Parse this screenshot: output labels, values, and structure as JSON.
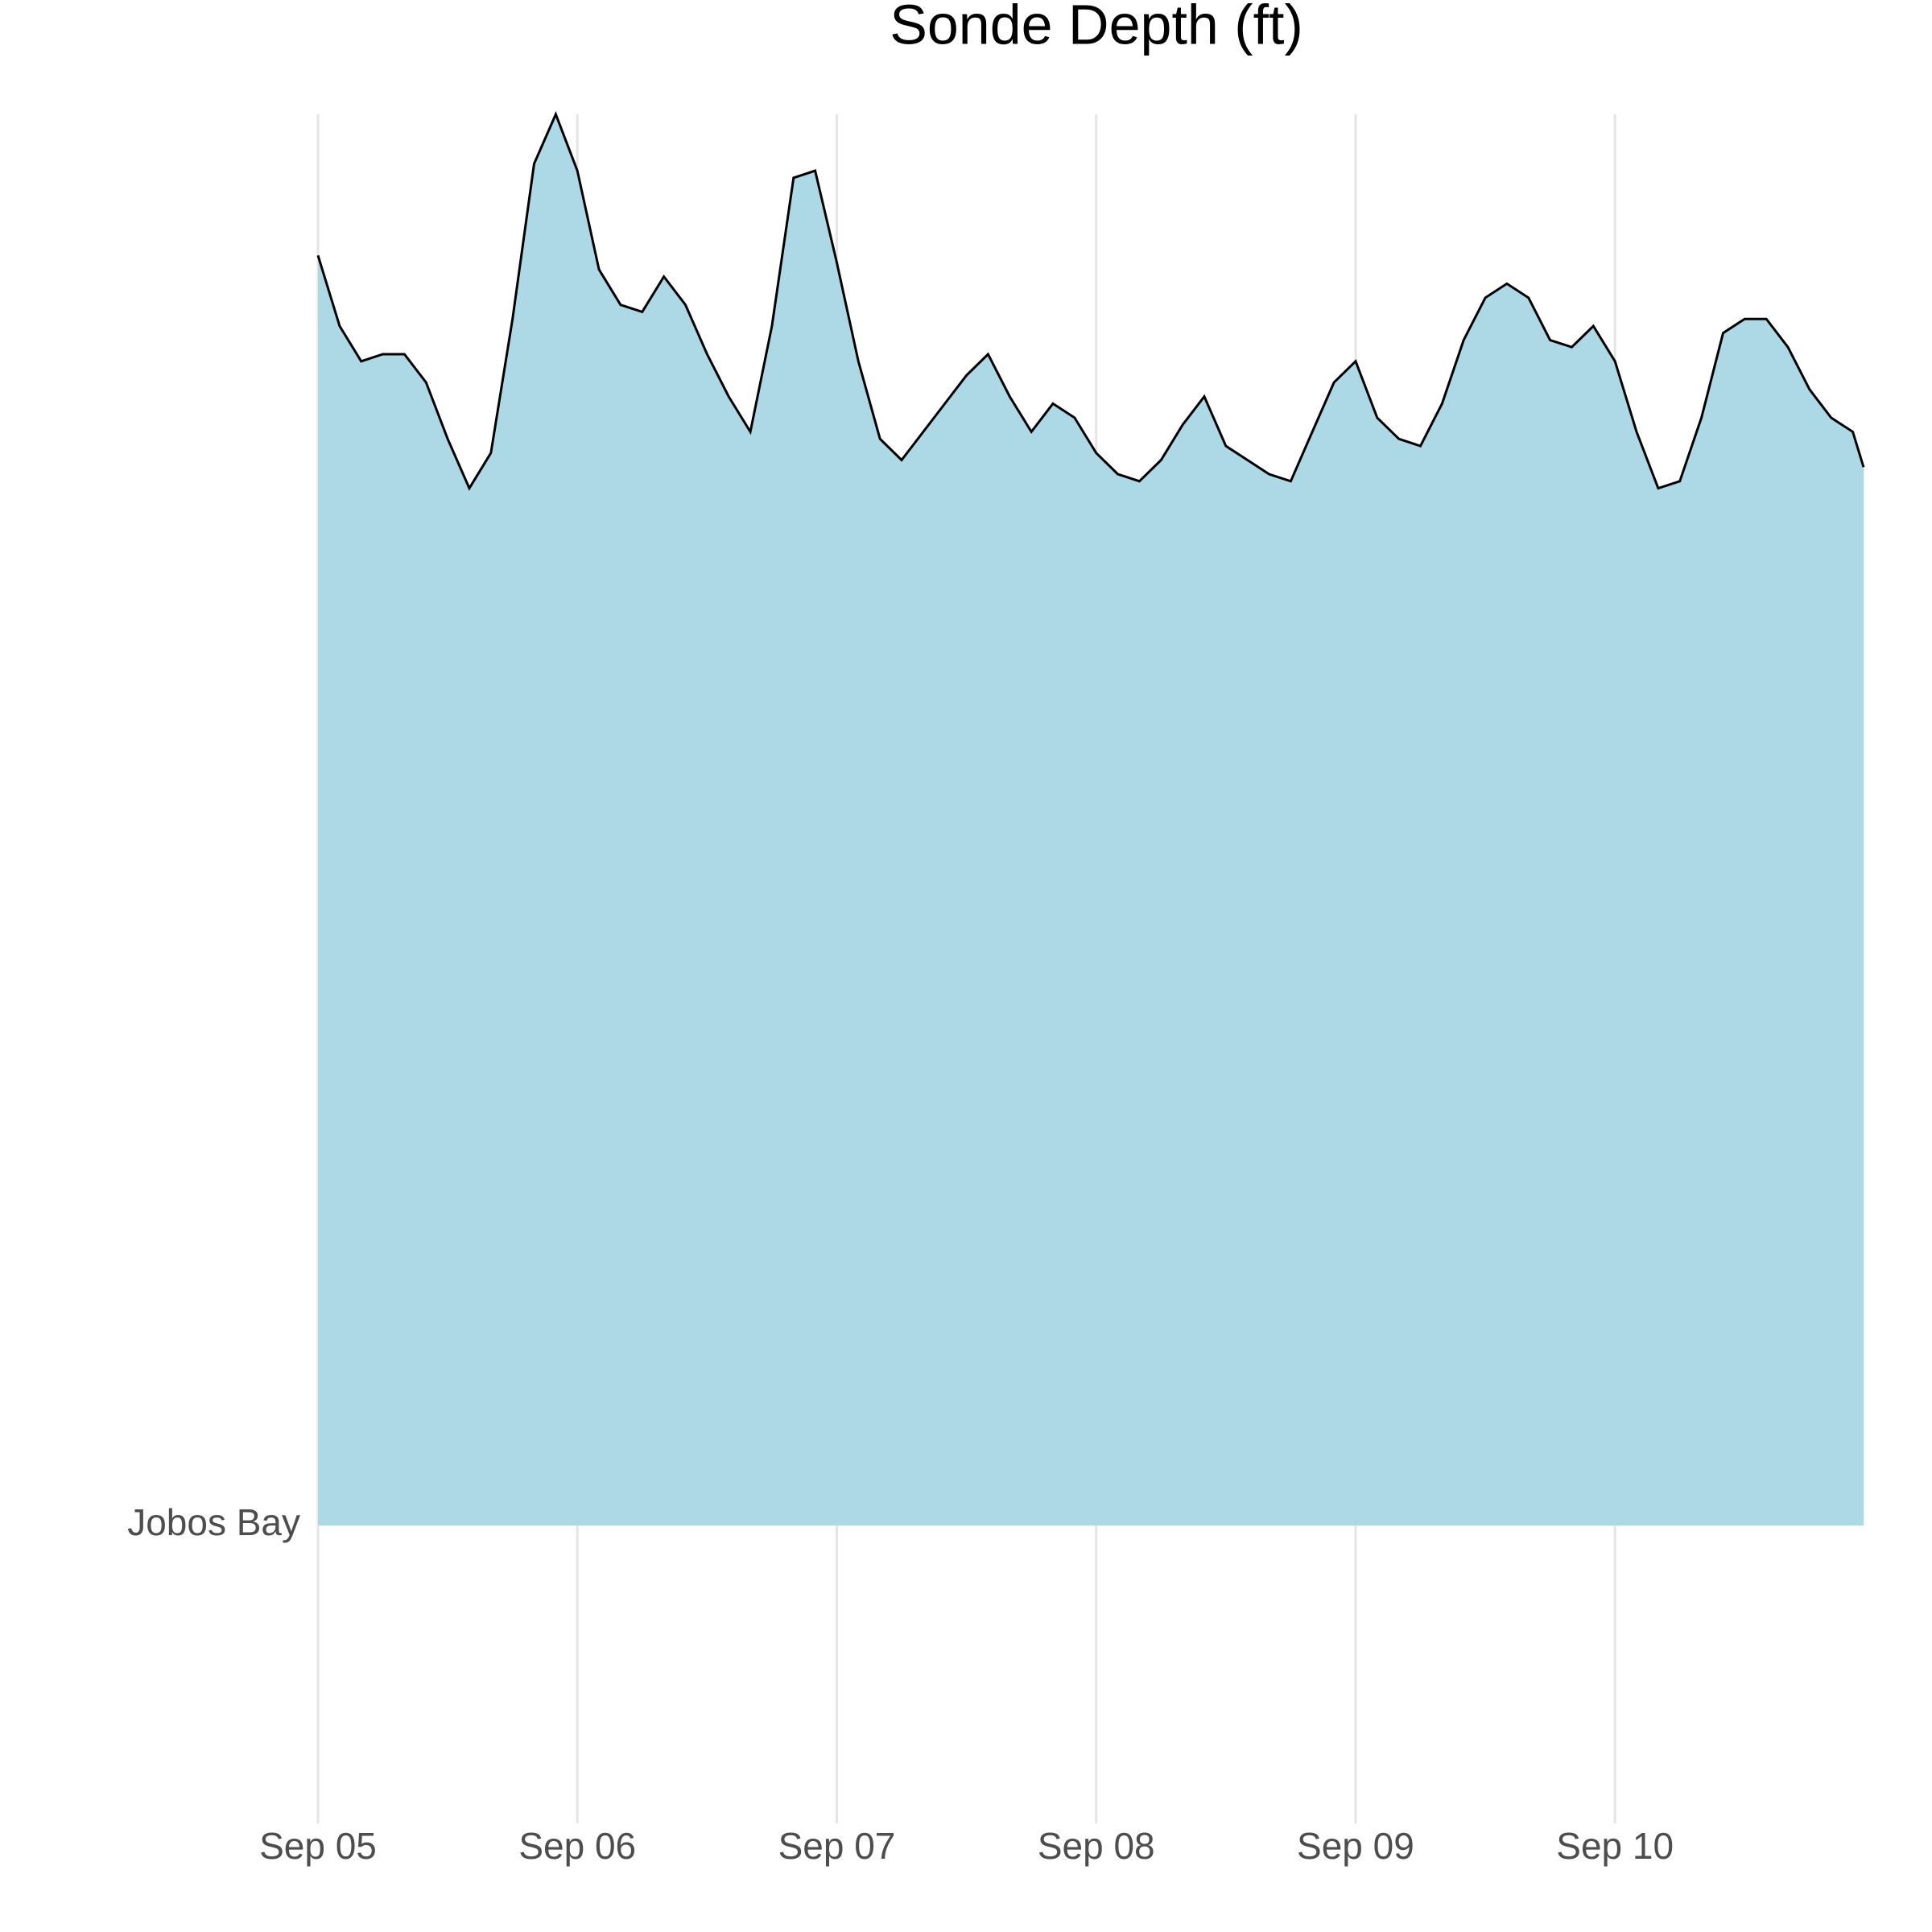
{
  "chart_data": {
    "type": "ridgeline",
    "title": "Sonde Depth (ft)",
    "categories": [
      "Jobos Bay"
    ],
    "x": [
      0,
      2,
      4,
      6,
      8,
      10,
      12,
      14,
      16,
      18,
      20,
      22,
      24,
      26,
      28,
      30,
      32,
      34,
      36,
      38,
      40,
      42,
      44,
      46,
      48,
      50,
      52,
      54,
      56,
      58,
      60,
      62,
      64,
      66,
      68,
      70,
      72,
      74,
      76,
      78,
      80,
      82,
      84,
      86,
      88,
      90,
      92,
      94,
      96,
      98,
      100,
      102,
      104,
      106,
      108,
      110,
      112,
      114,
      116,
      118,
      120,
      122,
      124,
      126,
      128,
      130,
      132,
      134,
      136,
      138,
      140,
      142,
      143
    ],
    "values": [
      1.8,
      1.7,
      1.65,
      1.66,
      1.66,
      1.62,
      1.54,
      1.47,
      1.52,
      1.71,
      1.93,
      2.0,
      1.92,
      1.78,
      1.73,
      1.72,
      1.77,
      1.73,
      1.66,
      1.6,
      1.55,
      1.7,
      1.91,
      1.92,
      1.79,
      1.65,
      1.54,
      1.51,
      1.55,
      1.59,
      1.63,
      1.66,
      1.6,
      1.55,
      1.59,
      1.57,
      1.52,
      1.49,
      1.48,
      1.51,
      1.56,
      1.6,
      1.53,
      1.51,
      1.49,
      1.48,
      1.55,
      1.62,
      1.65,
      1.57,
      1.54,
      1.53,
      1.59,
      1.68,
      1.74,
      1.76,
      1.74,
      1.68,
      1.67,
      1.7,
      1.65,
      1.55,
      1.47,
      1.48,
      1.57,
      1.69,
      1.71,
      1.71,
      1.67,
      1.61,
      1.57,
      1.55,
      1.5
    ],
    "xlim": [
      0,
      143
    ],
    "xticks": [
      {
        "value": 0,
        "label": "Sep 05"
      },
      {
        "value": 24,
        "label": "Sep 06"
      },
      {
        "value": 48,
        "label": "Sep 07"
      },
      {
        "value": 72,
        "label": "Sep 08"
      },
      {
        "value": 96,
        "label": "Sep 09"
      },
      {
        "value": 120,
        "label": "Sep 10"
      }
    ],
    "ylim": [
      0,
      2
    ],
    "fill": "#add8e6",
    "line_color": "#000000",
    "grid": true
  }
}
